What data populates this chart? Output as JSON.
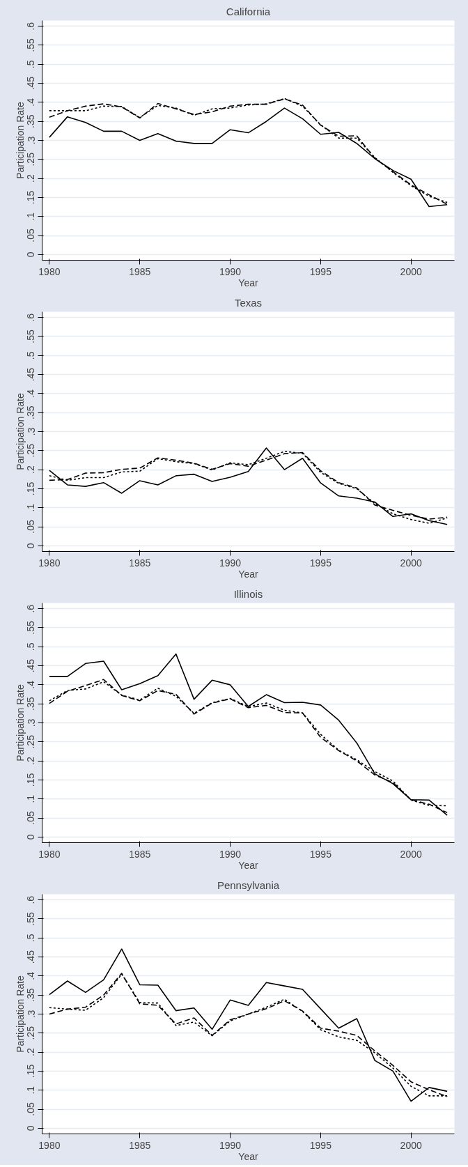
{
  "chart_data": [
    {
      "type": "line",
      "title": "California",
      "xlabel": "Year",
      "ylabel": "Participation Rate",
      "grid": "y",
      "xlim": [
        1979.6,
        2002.4
      ],
      "ylim": [
        -0.015,
        0.615
      ],
      "xticks": [
        1980,
        1985,
        1990,
        1995,
        2000
      ],
      "yticks": [
        {
          "value": 0,
          "label": "0"
        },
        {
          "value": 0.05,
          "label": ".05"
        },
        {
          "value": 0.1,
          "label": ".1"
        },
        {
          "value": 0.15,
          "label": ".15"
        },
        {
          "value": 0.2,
          "label": ".2"
        },
        {
          "value": 0.25,
          "label": ".25"
        },
        {
          "value": 0.3,
          "label": ".3"
        },
        {
          "value": 0.35,
          "label": ".35"
        },
        {
          "value": 0.4,
          "label": ".4"
        },
        {
          "value": 0.45,
          "label": ".45"
        },
        {
          "value": 0.5,
          "label": ".5"
        },
        {
          "value": 0.55,
          "label": ".55"
        },
        {
          "value": 0.6,
          "label": ".6"
        }
      ],
      "x": [
        1980,
        1981,
        1982,
        1983,
        1984,
        1985,
        1986,
        1987,
        1988,
        1989,
        1990,
        1991,
        1992,
        1993,
        1994,
        1995,
        1996,
        1997,
        1998,
        1999,
        2000,
        2001,
        2002
      ],
      "series": [
        {
          "color": "#000000",
          "line_style": "solid",
          "values": [
            0.308,
            0.362,
            0.347,
            0.324,
            0.324,
            0.3,
            0.318,
            0.298,
            0.292,
            0.292,
            0.328,
            0.32,
            0.35,
            0.385,
            0.357,
            0.316,
            0.321,
            0.292,
            0.252,
            0.221,
            0.198,
            0.126,
            0.131
          ]
        },
        {
          "color": "#000000",
          "line_style": "dashed",
          "values": [
            0.361,
            0.378,
            0.39,
            0.396,
            0.388,
            0.359,
            0.397,
            0.383,
            0.368,
            0.375,
            0.39,
            0.395,
            0.395,
            0.409,
            0.393,
            0.34,
            0.311,
            0.312,
            0.253,
            0.218,
            0.183,
            0.157,
            0.132
          ]
        },
        {
          "color": "#000000",
          "line_style": "dotted",
          "values": [
            0.378,
            0.378,
            0.378,
            0.39,
            0.389,
            0.36,
            0.392,
            0.385,
            0.366,
            0.383,
            0.385,
            0.393,
            0.396,
            0.41,
            0.39,
            0.341,
            0.306,
            0.306,
            0.255,
            0.216,
            0.181,
            0.153,
            0.137
          ]
        }
      ]
    },
    {
      "type": "line",
      "title": "Texas",
      "xlabel": "Year",
      "ylabel": "Participation Rate",
      "grid": "y",
      "xlim": [
        1979.6,
        2002.4
      ],
      "ylim": [
        -0.015,
        0.615
      ],
      "xticks": [
        1980,
        1985,
        1990,
        1995,
        2000
      ],
      "yticks": [
        {
          "value": 0,
          "label": "0"
        },
        {
          "value": 0.05,
          "label": ".05"
        },
        {
          "value": 0.1,
          "label": ".1"
        },
        {
          "value": 0.15,
          "label": ".15"
        },
        {
          "value": 0.2,
          "label": ".2"
        },
        {
          "value": 0.25,
          "label": ".25"
        },
        {
          "value": 0.3,
          "label": ".3"
        },
        {
          "value": 0.35,
          "label": ".35"
        },
        {
          "value": 0.4,
          "label": ".4"
        },
        {
          "value": 0.45,
          "label": ".45"
        },
        {
          "value": 0.5,
          "label": ".5"
        },
        {
          "value": 0.55,
          "label": ".55"
        },
        {
          "value": 0.6,
          "label": ".6"
        }
      ],
      "x": [
        1980,
        1981,
        1982,
        1983,
        1984,
        1985,
        1986,
        1987,
        1988,
        1989,
        1990,
        1991,
        1992,
        1993,
        1994,
        1995,
        1996,
        1997,
        1998,
        1999,
        2000,
        2001,
        2002
      ],
      "series": [
        {
          "color": "#000000",
          "line_style": "solid",
          "values": [
            0.198,
            0.16,
            0.156,
            0.166,
            0.138,
            0.171,
            0.16,
            0.184,
            0.188,
            0.169,
            0.18,
            0.195,
            0.257,
            0.2,
            0.23,
            0.165,
            0.131,
            0.125,
            0.115,
            0.077,
            0.084,
            0.066,
            0.056
          ]
        },
        {
          "color": "#000000",
          "line_style": "dashed",
          "values": [
            0.172,
            0.174,
            0.191,
            0.192,
            0.201,
            0.204,
            0.231,
            0.225,
            0.217,
            0.201,
            0.216,
            0.209,
            0.225,
            0.242,
            0.245,
            0.197,
            0.166,
            0.152,
            0.107,
            0.093,
            0.08,
            0.07,
            0.075
          ]
        },
        {
          "color": "#000000",
          "line_style": "dotted",
          "values": [
            0.184,
            0.172,
            0.179,
            0.179,
            0.194,
            0.196,
            0.229,
            0.221,
            0.216,
            0.199,
            0.218,
            0.213,
            0.23,
            0.248,
            0.243,
            0.193,
            0.164,
            0.15,
            0.111,
            0.084,
            0.069,
            0.059,
            0.073
          ]
        }
      ]
    },
    {
      "type": "line",
      "title": "Illinois",
      "xlabel": "Year",
      "ylabel": "Participation Rate",
      "grid": "y",
      "xlim": [
        1979.6,
        2002.4
      ],
      "ylim": [
        -0.015,
        0.615
      ],
      "xticks": [
        1980,
        1985,
        1990,
        1995,
        2000
      ],
      "yticks": [
        {
          "value": 0,
          "label": "0"
        },
        {
          "value": 0.05,
          "label": ".05"
        },
        {
          "value": 0.1,
          "label": ".1"
        },
        {
          "value": 0.15,
          "label": ".15"
        },
        {
          "value": 0.2,
          "label": ".2"
        },
        {
          "value": 0.25,
          "label": ".25"
        },
        {
          "value": 0.3,
          "label": ".3"
        },
        {
          "value": 0.35,
          "label": ".35"
        },
        {
          "value": 0.4,
          "label": ".4"
        },
        {
          "value": 0.45,
          "label": ".45"
        },
        {
          "value": 0.5,
          "label": ".5"
        },
        {
          "value": 0.55,
          "label": ".55"
        },
        {
          "value": 0.6,
          "label": ".6"
        }
      ],
      "x": [
        1980,
        1981,
        1982,
        1983,
        1984,
        1985,
        1986,
        1987,
        1988,
        1989,
        1990,
        1991,
        1992,
        1993,
        1994,
        1995,
        1996,
        1997,
        1998,
        1999,
        2000,
        2001,
        2002
      ],
      "series": [
        {
          "color": "#000000",
          "line_style": "solid",
          "values": [
            0.422,
            0.422,
            0.456,
            0.462,
            0.387,
            0.403,
            0.424,
            0.481,
            0.362,
            0.412,
            0.4,
            0.343,
            0.374,
            0.353,
            0.354,
            0.347,
            0.307,
            0.247,
            0.166,
            0.14,
            0.098,
            0.097,
            0.057
          ]
        },
        {
          "color": "#000000",
          "line_style": "dashed",
          "values": [
            0.351,
            0.383,
            0.398,
            0.414,
            0.372,
            0.358,
            0.385,
            0.375,
            0.323,
            0.352,
            0.363,
            0.34,
            0.346,
            0.327,
            0.326,
            0.262,
            0.227,
            0.2,
            0.163,
            0.143,
            0.098,
            0.086,
            0.064
          ]
        },
        {
          "color": "#000000",
          "line_style": "dotted",
          "values": [
            0.358,
            0.385,
            0.389,
            0.408,
            0.373,
            0.36,
            0.391,
            0.37,
            0.325,
            0.353,
            0.364,
            0.343,
            0.352,
            0.333,
            0.326,
            0.27,
            0.228,
            0.203,
            0.172,
            0.147,
            0.097,
            0.083,
            0.082
          ]
        }
      ]
    },
    {
      "type": "line",
      "title": "Pennsylvania",
      "xlabel": "Year",
      "ylabel": "Participation Rate",
      "grid": "y",
      "xlim": [
        1979.6,
        2002.4
      ],
      "ylim": [
        -0.015,
        0.615
      ],
      "xticks": [
        1980,
        1985,
        1990,
        1995,
        2000
      ],
      "yticks": [
        {
          "value": 0,
          "label": "0"
        },
        {
          "value": 0.05,
          "label": ".05"
        },
        {
          "value": 0.1,
          "label": ".1"
        },
        {
          "value": 0.15,
          "label": ".15"
        },
        {
          "value": 0.2,
          "label": ".2"
        },
        {
          "value": 0.25,
          "label": ".25"
        },
        {
          "value": 0.3,
          "label": ".3"
        },
        {
          "value": 0.35,
          "label": ".35"
        },
        {
          "value": 0.4,
          "label": ".4"
        },
        {
          "value": 0.45,
          "label": ".45"
        },
        {
          "value": 0.5,
          "label": ".5"
        },
        {
          "value": 0.55,
          "label": ".55"
        },
        {
          "value": 0.6,
          "label": ".6"
        }
      ],
      "x": [
        1980,
        1981,
        1982,
        1983,
        1984,
        1985,
        1986,
        1987,
        1988,
        1989,
        1990,
        1991,
        1992,
        1993,
        1994,
        1995,
        1996,
        1997,
        1998,
        1999,
        2000,
        2001,
        2002
      ],
      "series": [
        {
          "color": "#000000",
          "line_style": "solid",
          "values": [
            0.351,
            0.387,
            0.357,
            0.39,
            0.471,
            0.377,
            0.376,
            0.309,
            0.316,
            0.26,
            0.337,
            0.323,
            0.383,
            0.374,
            0.365,
            0.314,
            0.263,
            0.288,
            0.178,
            0.15,
            0.071,
            0.107,
            0.097
          ]
        },
        {
          "color": "#000000",
          "line_style": "dashed",
          "values": [
            0.3,
            0.313,
            0.318,
            0.35,
            0.407,
            0.327,
            0.323,
            0.274,
            0.29,
            0.244,
            0.285,
            0.3,
            0.314,
            0.335,
            0.308,
            0.263,
            0.255,
            0.244,
            0.203,
            0.165,
            0.122,
            0.101,
            0.083
          ]
        },
        {
          "color": "#000000",
          "line_style": "dotted",
          "values": [
            0.317,
            0.313,
            0.31,
            0.343,
            0.405,
            0.33,
            0.329,
            0.27,
            0.279,
            0.243,
            0.282,
            0.3,
            0.318,
            0.339,
            0.307,
            0.259,
            0.24,
            0.231,
            0.198,
            0.158,
            0.11,
            0.085,
            0.085
          ]
        }
      ]
    }
  ]
}
